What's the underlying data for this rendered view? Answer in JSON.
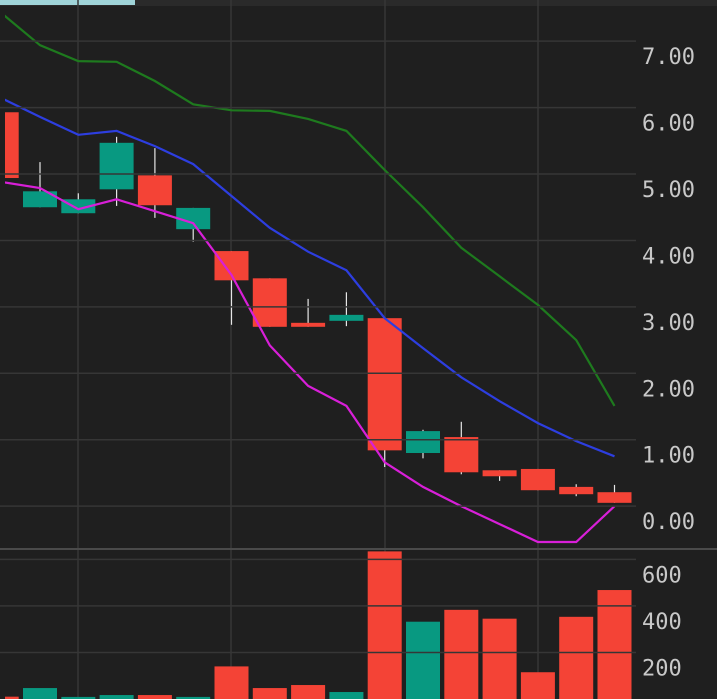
{
  "chart_data": [
    {
      "type": "candlestick",
      "open": [
        5.93,
        4.5,
        4.41,
        4.77,
        4.98,
        4.17,
        3.84,
        3.43,
        2.76,
        2.79,
        2.83,
        0.8,
        1.04,
        0.54,
        0.56,
        0.29,
        0.21
      ],
      "high": [
        5.93,
        5.18,
        4.71,
        5.56,
        5.39,
        4.49,
        3.84,
        3.43,
        3.12,
        3.22,
        2.83,
        1.15,
        1.27,
        0.54,
        0.56,
        0.33,
        0.32
      ],
      "low": [
        4.94,
        4.5,
        4.41,
        4.52,
        4.34,
        3.98,
        2.73,
        2.7,
        2.7,
        2.71,
        0.59,
        0.72,
        0.48,
        0.38,
        0.24,
        0.15,
        0.05
      ],
      "close": [
        4.94,
        4.74,
        4.62,
        5.47,
        4.53,
        4.49,
        3.4,
        2.7,
        2.7,
        2.88,
        0.84,
        1.13,
        0.51,
        0.45,
        0.24,
        0.18,
        0.05
      ],
      "up_color": "#089981",
      "down_color": "#f44336",
      "series": [
        {
          "color": "#1e7a1e",
          "values": [
            7.42,
            6.94,
            6.7,
            6.69,
            6.4,
            6.05,
            5.96,
            5.95,
            5.83,
            5.65,
            5.06,
            4.5,
            3.89,
            3.46,
            3.03,
            2.5,
            1.51
          ]
        },
        {
          "color": "#2d3ee0",
          "values": [
            6.14,
            5.86,
            5.59,
            5.65,
            5.42,
            5.15,
            4.67,
            4.19,
            3.83,
            3.55,
            2.83,
            2.38,
            1.94,
            1.58,
            1.25,
            0.98,
            0.75
          ]
        },
        {
          "color": "#d81fd8",
          "values": [
            4.88,
            4.79,
            4.47,
            4.62,
            4.44,
            4.26,
            3.48,
            2.42,
            1.81,
            1.51,
            0.66,
            0.29,
            0.0,
            -0.27,
            -0.54,
            -0.54,
            0.0
          ]
        }
      ],
      "ylim": [
        -0.63,
        7.62
      ],
      "yticks": [
        {
          "value": 0,
          "label": "0.00"
        },
        {
          "value": 1,
          "label": "1.00"
        },
        {
          "value": 2,
          "label": "2.00"
        },
        {
          "value": 3,
          "label": "3.00"
        },
        {
          "value": 4,
          "label": "4.00"
        },
        {
          "value": 5,
          "label": "5.00"
        },
        {
          "value": 6,
          "label": "6.00"
        },
        {
          "value": 7,
          "label": "7.00"
        }
      ],
      "grid": true
    },
    {
      "type": "volume",
      "values": [
        10,
        47,
        9,
        17,
        17,
        9,
        140,
        47,
        60,
        30,
        634,
        332,
        383,
        345,
        115,
        353,
        468
      ],
      "ylim": [
        0,
        640
      ],
      "yticks": [
        200,
        400,
        600
      ],
      "grid": true
    }
  ]
}
